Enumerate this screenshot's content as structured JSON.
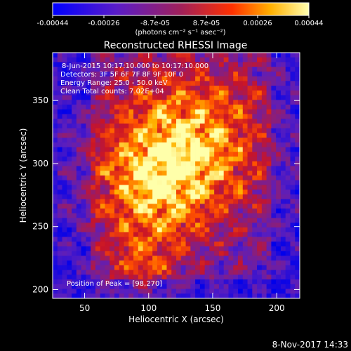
{
  "chart_data": {
    "type": "heatmap",
    "title": "Reconstructed RHESSI Image",
    "xlabel": "Heliocentric X (arcsec)",
    "ylabel": "Heliocentric Y (arcsec)",
    "xlim": [
      25,
      218
    ],
    "ylim": [
      193,
      388
    ],
    "x_ticks": [
      50,
      100,
      150,
      200
    ],
    "y_ticks": [
      200,
      250,
      300,
      350
    ],
    "colorbar": {
      "ticks": [
        "-0.00044",
        "-0.00026",
        "-8.7e-05",
        "8.7e-05",
        "0.00026",
        "0.00044"
      ],
      "units": "(photons cm⁻² s⁻¹ asec⁻²)",
      "range": [
        -0.00044,
        0.00044
      ]
    },
    "annotations": [
      "8-Jun-2015 10:17:10.000 to 10:17:10.000",
      "Detectors: 3F 5F 6F 7F 8F 9F 10F 0",
      "Energy Range: 25.0 - 50.0 keV",
      "Clean     Total counts: 7.02E+04"
    ],
    "peak_label": "Position of Peak = [98,270]",
    "peak": [
      98,
      270
    ],
    "grid": false
  },
  "footer": {
    "timestamp": "8-Nov-2017 14:33"
  }
}
